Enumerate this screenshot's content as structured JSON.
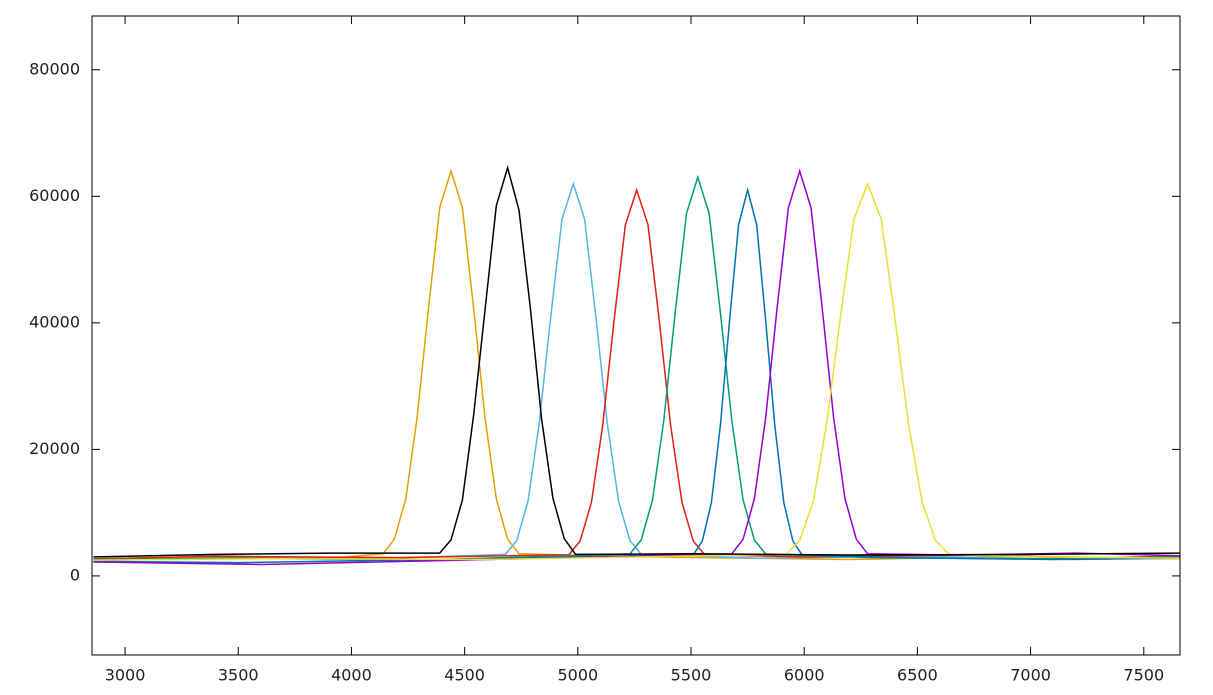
{
  "chart_data": {
    "type": "line",
    "xlim": [
      2854,
      7660
    ],
    "ylim": [
      -12500,
      88500
    ],
    "xticks": [
      3000,
      3500,
      4000,
      4500,
      5000,
      5500,
      6000,
      6500,
      7000,
      7500
    ],
    "yticks": [
      0,
      20000,
      40000,
      60000,
      80000
    ],
    "grid": false,
    "series": [
      {
        "color": "#e69f00",
        "x": [
          2860,
          3400,
          3900,
          4140,
          4190,
          4240,
          4290,
          4340,
          4390,
          4440,
          4490,
          4540,
          4590,
          4640,
          4690,
          4740,
          5300,
          6200,
          7000,
          7660
        ],
        "values": [
          2500,
          3200,
          2800,
          3500,
          5800,
          12200,
          25000,
          42200,
          58200,
          64000,
          58200,
          42200,
          25000,
          12200,
          5800,
          3500,
          3000,
          2600,
          3100,
          2700
        ]
      },
      {
        "color": "#56b4e9",
        "x": [
          2860,
          3400,
          4100,
          4680,
          4730,
          4780,
          4830,
          4880,
          4930,
          4980,
          5030,
          5080,
          5130,
          5180,
          5230,
          5280,
          5800,
          6500,
          7200,
          7660
        ],
        "values": [
          2400,
          2900,
          2700,
          3400,
          5600,
          11800,
          24200,
          40900,
          56400,
          62000,
          56400,
          40900,
          24200,
          11800,
          5600,
          3400,
          2800,
          3100,
          2600,
          2900
        ]
      },
      {
        "color": "#e51e10",
        "x": [
          2860,
          3400,
          4200,
          4960,
          5010,
          5060,
          5110,
          5160,
          5210,
          5260,
          5310,
          5360,
          5410,
          5460,
          5510,
          5560,
          6000,
          6700,
          7300,
          7660
        ],
        "values": [
          2700,
          3100,
          2900,
          3350,
          5500,
          11600,
          23800,
          40300,
          55500,
          61000,
          55500,
          40300,
          23800,
          11600,
          5500,
          3350,
          3000,
          3300,
          2800,
          3200
        ]
      },
      {
        "color": "#009e73",
        "x": [
          2860,
          3500,
          4300,
          5230,
          5280,
          5330,
          5380,
          5430,
          5480,
          5530,
          5580,
          5630,
          5680,
          5730,
          5780,
          5830,
          6300,
          7000,
          7660
        ],
        "values": [
          2600,
          2800,
          2500,
          3460,
          5670,
          12000,
          24600,
          41600,
          57300,
          63000,
          57300,
          41600,
          24600,
          12000,
          5670,
          3460,
          2900,
          2700,
          3000
        ]
      },
      {
        "color": "#0072b2",
        "x": [
          2860,
          3500,
          4400,
          5510,
          5550,
          5590,
          5630,
          5670,
          5710,
          5750,
          5790,
          5830,
          5870,
          5910,
          5950,
          5990,
          6400,
          7100,
          7660
        ],
        "values": [
          2300,
          2100,
          2600,
          3350,
          5500,
          11600,
          23800,
          40300,
          55500,
          61000,
          55500,
          40300,
          23800,
          11600,
          5500,
          3350,
          2900,
          2600,
          2800
        ]
      },
      {
        "color": "#9400d3",
        "x": [
          2860,
          3600,
          4500,
          5680,
          5730,
          5780,
          5830,
          5880,
          5930,
          5980,
          6030,
          6080,
          6130,
          6180,
          6230,
          6280,
          6700,
          7200,
          7660
        ],
        "values": [
          2200,
          1800,
          2500,
          3500,
          5800,
          12200,
          25000,
          42200,
          58200,
          64000,
          58200,
          42200,
          25000,
          12200,
          5800,
          3500,
          3300,
          3600,
          3200
        ]
      },
      {
        "color": "#e8e030",
        "x": [
          2860,
          3600,
          4600,
          5920,
          5980,
          6040,
          6100,
          6160,
          6220,
          6280,
          6340,
          6400,
          6460,
          6520,
          6580,
          6640,
          7000,
          7660
        ],
        "values": [
          2500,
          2700,
          2600,
          3400,
          5600,
          11800,
          24200,
          40900,
          56400,
          62000,
          56400,
          40900,
          24200,
          11800,
          5600,
          3400,
          3000,
          2800
        ]
      },
      {
        "color": "#000000",
        "x": [
          2860,
          3400,
          3900,
          4390,
          4440,
          4490,
          4540,
          4590,
          4640,
          4690,
          4740,
          4790,
          4840,
          4890,
          4940,
          4990,
          5500,
          6200,
          7000,
          7660
        ],
        "values": [
          3000,
          3400,
          3600,
          3600,
          5700,
          12000,
          25500,
          42000,
          58500,
          64500,
          57800,
          42400,
          24800,
          12300,
          5900,
          3400,
          3500,
          3300,
          3400,
          3600
        ]
      }
    ]
  }
}
